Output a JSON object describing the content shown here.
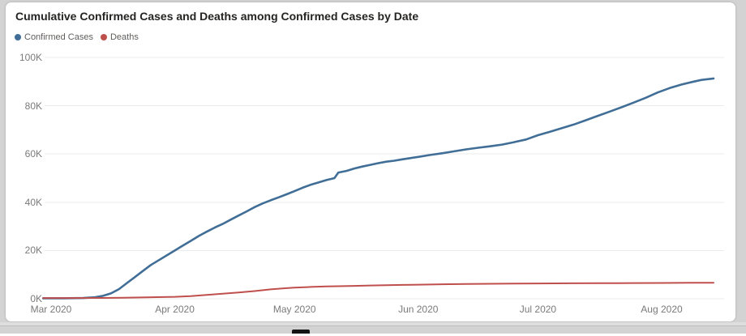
{
  "title": "Cumulative Confirmed Cases and Deaths among Confirmed Cases by Date",
  "legend": [
    {
      "label": "Confirmed Cases",
      "color": "#406e96"
    },
    {
      "label": "Deaths",
      "color": "#bf4f4c"
    }
  ],
  "colors": {
    "confirmed_line": "#406e96",
    "deaths_line": "#bf4f4c",
    "gridline": "#ebebeb",
    "axis_text": "#7a7a7a",
    "title_text": "#252423",
    "card_background": "#ffffff",
    "page_background": "#d3d3d3"
  },
  "chart_data": {
    "type": "line",
    "title": "Cumulative Confirmed Cases and Deaths among Confirmed Cases by Date",
    "x_unit": "days since 2020-03-01",
    "y_unit": "thousands",
    "grid": "horizontal-only",
    "legend_position": "top-left",
    "x_axis": {
      "tick_labels": [
        "Mar 2020",
        "Apr 2020",
        "May 2020",
        "Jun 2020",
        "Jul 2020",
        "Aug 2020"
      ],
      "tick_days": [
        0,
        31,
        61,
        92,
        122,
        153
      ],
      "range_days": [
        -2,
        166
      ]
    },
    "y_axis": {
      "tick_labels": [
        "0K",
        "20K",
        "40K",
        "60K",
        "80K",
        "100K"
      ],
      "tick_values": [
        0,
        20,
        40,
        60,
        80,
        100
      ],
      "range": [
        0,
        100
      ]
    },
    "series": [
      {
        "name": "Confirmed Cases",
        "color": "#406e96",
        "stroke_width": 2.6,
        "points": [
          [
            -2,
            0.2
          ],
          [
            3,
            0.2
          ],
          [
            8,
            0.3
          ],
          [
            11,
            0.6
          ],
          [
            13,
            1.2
          ],
          [
            15,
            2.2
          ],
          [
            17,
            4
          ],
          [
            19,
            6.5
          ],
          [
            21,
            9
          ],
          [
            23,
            11.5
          ],
          [
            25,
            14
          ],
          [
            27,
            16
          ],
          [
            29,
            18
          ],
          [
            31,
            20
          ],
          [
            33,
            22
          ],
          [
            35,
            24
          ],
          [
            37,
            26
          ],
          [
            39,
            27.8
          ],
          [
            41,
            29.5
          ],
          [
            43,
            31
          ],
          [
            45,
            32.8
          ],
          [
            47,
            34.5
          ],
          [
            49,
            36.2
          ],
          [
            51,
            38
          ],
          [
            53,
            39.5
          ],
          [
            55,
            40.8
          ],
          [
            57,
            42
          ],
          [
            59,
            43.3
          ],
          [
            61,
            44.6
          ],
          [
            63,
            46
          ],
          [
            65,
            47.2
          ],
          [
            67,
            48.2
          ],
          [
            69,
            49.2
          ],
          [
            71,
            50
          ],
          [
            72,
            52.3
          ],
          [
            74,
            53
          ],
          [
            76,
            54
          ],
          [
            78,
            54.8
          ],
          [
            80,
            55.5
          ],
          [
            82,
            56.2
          ],
          [
            84,
            56.8
          ],
          [
            86,
            57.2
          ],
          [
            88,
            57.8
          ],
          [
            90,
            58.3
          ],
          [
            92,
            58.8
          ],
          [
            95,
            59.6
          ],
          [
            98,
            60.3
          ],
          [
            101,
            61.1
          ],
          [
            104,
            61.9
          ],
          [
            107,
            62.6
          ],
          [
            110,
            63.2
          ],
          [
            113,
            63.9
          ],
          [
            116,
            64.9
          ],
          [
            119,
            66
          ],
          [
            122,
            67.8
          ],
          [
            125,
            69.2
          ],
          [
            128,
            70.7
          ],
          [
            131,
            72.2
          ],
          [
            134,
            74
          ],
          [
            137,
            75.8
          ],
          [
            140,
            77.6
          ],
          [
            143,
            79.4
          ],
          [
            146,
            81.3
          ],
          [
            149,
            83.3
          ],
          [
            152,
            85.5
          ],
          [
            155,
            87.3
          ],
          [
            158,
            88.8
          ],
          [
            161,
            90
          ],
          [
            163,
            90.7
          ],
          [
            166,
            91.3
          ]
        ]
      },
      {
        "name": "Deaths",
        "color": "#bf4f4c",
        "stroke_width": 2,
        "points": [
          [
            -2,
            0.3
          ],
          [
            5,
            0.3
          ],
          [
            12,
            0.35
          ],
          [
            18,
            0.45
          ],
          [
            24,
            0.6
          ],
          [
            28,
            0.7
          ],
          [
            31,
            0.8
          ],
          [
            35,
            1.1
          ],
          [
            39,
            1.6
          ],
          [
            43,
            2.1
          ],
          [
            47,
            2.6
          ],
          [
            51,
            3.2
          ],
          [
            55,
            3.9
          ],
          [
            59,
            4.4
          ],
          [
            61,
            4.6
          ],
          [
            65,
            4.9
          ],
          [
            69,
            5.1
          ],
          [
            72,
            5.2
          ],
          [
            76,
            5.35
          ],
          [
            80,
            5.5
          ],
          [
            84,
            5.6
          ],
          [
            88,
            5.75
          ],
          [
            92,
            5.85
          ],
          [
            98,
            6
          ],
          [
            104,
            6.1
          ],
          [
            110,
            6.2
          ],
          [
            116,
            6.3
          ],
          [
            122,
            6.35
          ],
          [
            130,
            6.4
          ],
          [
            138,
            6.45
          ],
          [
            146,
            6.5
          ],
          [
            153,
            6.55
          ],
          [
            160,
            6.6
          ],
          [
            166,
            6.65
          ]
        ]
      }
    ]
  }
}
